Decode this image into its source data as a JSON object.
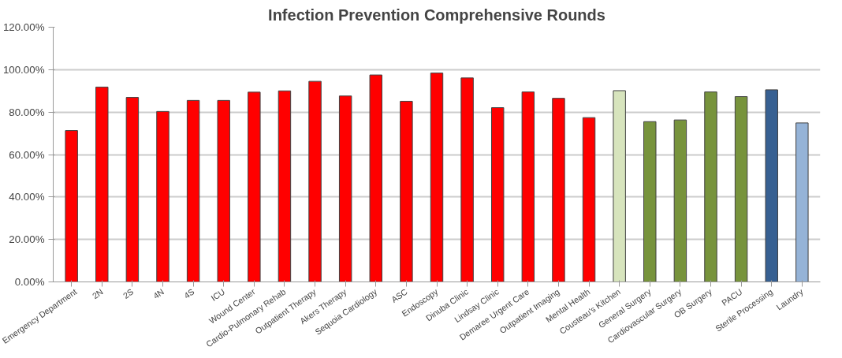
{
  "chart_data": {
    "type": "bar",
    "title": "Infection Prevention Comprehensive Rounds",
    "categories": [
      "Emergency Department",
      "2N",
      "2S",
      "4N",
      "4S",
      "ICU",
      "Wound Center",
      "Cardio-Pulmonary Rehab",
      "Outpatient Therapy",
      "Akers Therapy",
      "Sequoia Cardiology",
      "ASC",
      "Endoscopy",
      "Dinuba Clinic",
      "Lindsay Clinic",
      "Demaree Urgent Care",
      "Outpatient Imaging",
      "Mental Health",
      "Cousteau's Kitchen",
      "General Surgery",
      "Cardiovascular Surgery",
      "OB Surgery",
      "PACU",
      "Sterile Processing",
      "Laundry"
    ],
    "values": [
      71.3,
      91.8,
      86.9,
      80.3,
      85.5,
      85.5,
      89.4,
      90.0,
      94.5,
      87.6,
      97.5,
      85.1,
      98.4,
      96.1,
      82.1,
      89.5,
      86.5,
      77.4,
      90.1,
      75.5,
      76.3,
      89.5,
      87.3,
      90.5,
      74.9
    ],
    "colors": [
      "#ff0000",
      "#ff0000",
      "#ff0000",
      "#ff0000",
      "#ff0000",
      "#ff0000",
      "#ff0000",
      "#ff0000",
      "#ff0000",
      "#ff0000",
      "#ff0000",
      "#ff0000",
      "#ff0000",
      "#ff0000",
      "#ff0000",
      "#ff0000",
      "#ff0000",
      "#ff0000",
      "#d7e4bd",
      "#77933c",
      "#77933c",
      "#77933c",
      "#77933c",
      "#376092",
      "#95b3d7"
    ],
    "ylim": [
      0,
      120
    ],
    "yticks": [
      {
        "value": 0,
        "label": "0.00%"
      },
      {
        "value": 20,
        "label": "20.00%"
      },
      {
        "value": 40,
        "label": "40.00%"
      },
      {
        "value": 60,
        "label": "60.00%"
      },
      {
        "value": 80,
        "label": "80.00%"
      },
      {
        "value": 100,
        "label": "100.00%"
      },
      {
        "value": 120,
        "label": "120.00%"
      }
    ],
    "grid": "y"
  }
}
